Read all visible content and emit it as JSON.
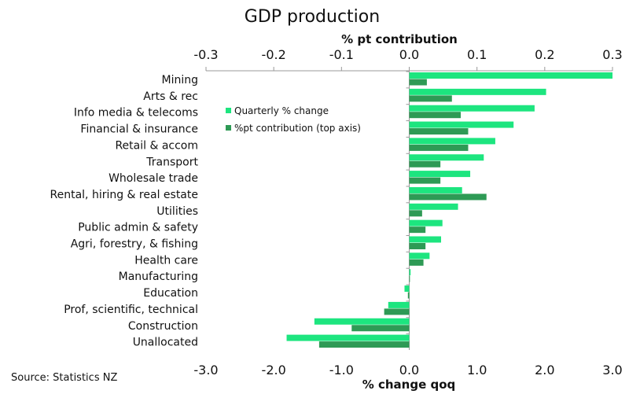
{
  "chart_data": {
    "type": "bar",
    "orientation": "horizontal",
    "title": "GDP production",
    "top_axis_label": "% pt contribution",
    "bottom_axis_label": "% change qoq",
    "source": "Source:  Statistics NZ",
    "categories": [
      "Mining",
      "Arts & rec",
      "Info media & telecoms",
      "Financial & insurance",
      "Retail & accom",
      "Transport",
      "Wholesale trade",
      "Rental, hiring & real estate",
      "Utilities",
      "Public admin & safety",
      "Agri, forestry, & fishing",
      "Health care",
      "Manufacturing",
      "Education",
      "Prof, scientific, technical",
      "Construction",
      "Unallocated"
    ],
    "bottom_axis": {
      "range": [
        -3.0,
        3.0
      ],
      "ticks": [
        "-3.0",
        "-2.0",
        "-1.0",
        "0.0",
        "1.0",
        "2.0",
        "3.0"
      ]
    },
    "top_axis": {
      "range": [
        -0.3,
        0.3
      ],
      "ticks": [
        "-0.3",
        "-0.2",
        "-0.1",
        "0.0",
        "0.1",
        "0.2",
        "0.3"
      ]
    },
    "legend_position": "upper-left inside plot",
    "grid": false,
    "series": [
      {
        "name": "Quarterly % change",
        "axis": "bottom",
        "color": "#1de57f",
        "values": [
          3.0,
          2.02,
          1.85,
          1.54,
          1.27,
          1.1,
          0.9,
          0.78,
          0.72,
          0.49,
          0.47,
          0.3,
          0.02,
          -0.07,
          -0.31,
          -1.4,
          -1.81
        ]
      },
      {
        "name": "%pt contribution (top axis)",
        "axis": "top",
        "color": "#2e9a55",
        "values": [
          0.026,
          0.063,
          0.076,
          0.087,
          0.087,
          0.046,
          0.046,
          0.114,
          0.019,
          0.024,
          0.024,
          0.021,
          0.001,
          -0.002,
          -0.037,
          -0.085,
          -0.133
        ]
      }
    ]
  }
}
